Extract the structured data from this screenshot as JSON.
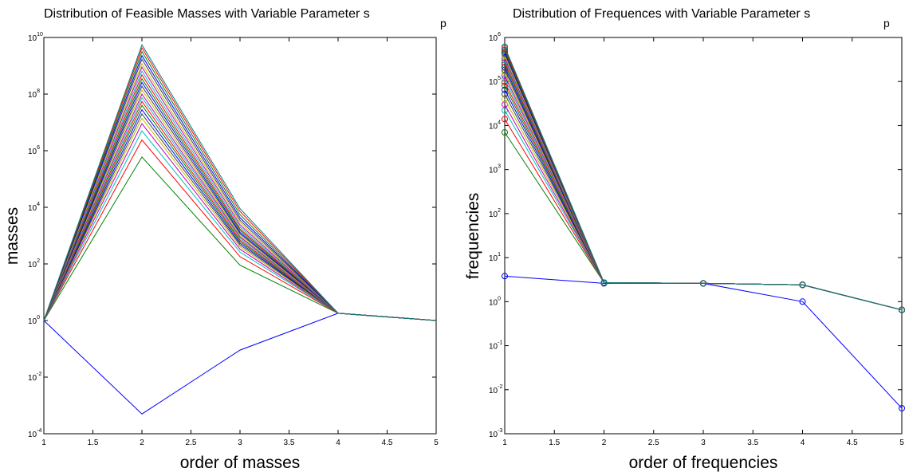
{
  "figure": {
    "title_left": "Distribution of Feasible Masses with Variable Parameter s",
    "title_right": "Distribution of Frequences with Variable Parameter s",
    "title_subscript": "p"
  },
  "chart_data": [
    {
      "type": "line",
      "title": "Distribution of Feasible Masses with Variable Parameter s",
      "title_subscript": "p",
      "xlabel": "order of masses",
      "ylabel": "masses",
      "xlim": [
        1,
        5
      ],
      "ylim": [
        0.0001,
        10000000000
      ],
      "yscale": "log",
      "xticks": [
        "1",
        "1.5",
        "2",
        "2.5",
        "3",
        "3.5",
        "4",
        "4.5",
        "5"
      ],
      "yticks": [
        {
          "base": "10",
          "exp": "-4"
        },
        {
          "base": "10",
          "exp": "-2"
        },
        {
          "base": "10",
          "exp": "0"
        },
        {
          "base": "10",
          "exp": "2"
        },
        {
          "base": "10",
          "exp": "4"
        },
        {
          "base": "10",
          "exp": "6"
        },
        {
          "base": "10",
          "exp": "8"
        },
        {
          "base": "10",
          "exp": "10"
        }
      ],
      "grid": false,
      "markers": false,
      "x": [
        1,
        2,
        3,
        4,
        5
      ],
      "series": [
        {
          "color": "#0000ff",
          "values": [
            1,
            0.0005,
            0.09,
            1.8,
            1
          ]
        },
        {
          "color": "#008000",
          "values": [
            1,
            600000,
            90,
            1.8,
            1
          ]
        },
        {
          "color": "#ff0000",
          "values": [
            1,
            2400000,
            180,
            1.8,
            1
          ]
        },
        {
          "color": "#00bfbf",
          "values": [
            1,
            5000000,
            260,
            1.8,
            1
          ]
        },
        {
          "color": "#bf00bf",
          "values": [
            1,
            9000000,
            330,
            1.8,
            1
          ]
        },
        {
          "color": "#bfbf00",
          "values": [
            1,
            14000000,
            400,
            1.8,
            1
          ]
        },
        {
          "color": "#404040",
          "values": [
            1,
            20000000,
            470,
            1.8,
            1
          ]
        },
        {
          "color": "#0000ff",
          "values": [
            1,
            28000000,
            540,
            1.8,
            1
          ]
        },
        {
          "color": "#008000",
          "values": [
            1,
            40000000,
            620,
            1.8,
            1
          ]
        },
        {
          "color": "#ff0000",
          "values": [
            1,
            55000000,
            700,
            1.8,
            1
          ]
        },
        {
          "color": "#00bfbf",
          "values": [
            1,
            75000000,
            800,
            1.8,
            1
          ]
        },
        {
          "color": "#bf00bf",
          "values": [
            1,
            100000000,
            900,
            1.8,
            1
          ]
        },
        {
          "color": "#bfbf00",
          "values": [
            1,
            140000000,
            1000,
            1.8,
            1
          ]
        },
        {
          "color": "#404040",
          "values": [
            1,
            190000000,
            1150,
            1.8,
            1
          ]
        },
        {
          "color": "#0000ff",
          "values": [
            1,
            260000000,
            1300,
            1.8,
            1
          ]
        },
        {
          "color": "#008000",
          "values": [
            1,
            350000000,
            1500,
            1.8,
            1
          ]
        },
        {
          "color": "#ff0000",
          "values": [
            1,
            480000000,
            1700,
            1.8,
            1
          ]
        },
        {
          "color": "#00bfbf",
          "values": [
            1,
            650000000,
            2000,
            1.8,
            1
          ]
        },
        {
          "color": "#bf00bf",
          "values": [
            1,
            900000000,
            2400,
            1.8,
            1
          ]
        },
        {
          "color": "#bfbf00",
          "values": [
            1,
            1200000000,
            2900,
            1.8,
            1
          ]
        },
        {
          "color": "#404040",
          "values": [
            1,
            1700000000,
            3500,
            1.8,
            1
          ]
        },
        {
          "color": "#0000ff",
          "values": [
            1,
            2300000000,
            4300,
            1.8,
            1
          ]
        },
        {
          "color": "#008000",
          "values": [
            1,
            3200000000,
            5500,
            1.8,
            1
          ]
        },
        {
          "color": "#ff0000",
          "values": [
            1,
            4300000000,
            7200,
            1.8,
            1
          ]
        },
        {
          "color": "#008080",
          "values": [
            1,
            5500000000,
            9000,
            1.8,
            1
          ]
        }
      ]
    },
    {
      "type": "line",
      "title": "Distribution of Frequences with Variable Parameter s",
      "title_subscript": "p",
      "xlabel": "order of frequencies",
      "ylabel": "frequencies",
      "xlim": [
        1,
        5
      ],
      "ylim": [
        0.001,
        1000000
      ],
      "yscale": "log",
      "xticks": [
        "1",
        "1.5",
        "2",
        "2.5",
        "3",
        "3.5",
        "4",
        "4.5",
        "5"
      ],
      "yticks": [
        {
          "base": "10",
          "exp": "-3"
        },
        {
          "base": "10",
          "exp": "-2"
        },
        {
          "base": "10",
          "exp": "-1"
        },
        {
          "base": "10",
          "exp": "0"
        },
        {
          "base": "10",
          "exp": "1"
        },
        {
          "base": "10",
          "exp": "2"
        },
        {
          "base": "10",
          "exp": "3"
        },
        {
          "base": "10",
          "exp": "4"
        },
        {
          "base": "10",
          "exp": "5"
        },
        {
          "base": "10",
          "exp": "6"
        }
      ],
      "grid": false,
      "markers": true,
      "marker": "circle",
      "x": [
        1,
        2,
        3,
        4,
        5
      ],
      "series": [
        {
          "color": "#0000ff",
          "values": [
            3.8,
            2.6,
            2.6,
            1.0,
            0.0038
          ]
        },
        {
          "color": "#008000",
          "values": [
            7000,
            2.7,
            2.6,
            2.4,
            0.65
          ]
        },
        {
          "color": "#ff0000",
          "values": [
            14000,
            2.7,
            2.6,
            2.4,
            0.65
          ]
        },
        {
          "color": "#00bfbf",
          "values": [
            22000,
            2.7,
            2.6,
            2.4,
            0.65
          ]
        },
        {
          "color": "#bf00bf",
          "values": [
            30000,
            2.7,
            2.6,
            2.4,
            0.65
          ]
        },
        {
          "color": "#bfbf00",
          "values": [
            40000,
            2.7,
            2.6,
            2.4,
            0.65
          ]
        },
        {
          "color": "#404040",
          "values": [
            52000,
            2.7,
            2.6,
            2.4,
            0.65
          ]
        },
        {
          "color": "#0000ff",
          "values": [
            65000,
            2.7,
            2.6,
            2.4,
            0.65
          ]
        },
        {
          "color": "#008000",
          "values": [
            80000,
            2.7,
            2.6,
            2.4,
            0.65
          ]
        },
        {
          "color": "#ff0000",
          "values": [
            96000,
            2.7,
            2.6,
            2.4,
            0.65
          ]
        },
        {
          "color": "#00bfbf",
          "values": [
            115000,
            2.7,
            2.6,
            2.4,
            0.65
          ]
        },
        {
          "color": "#bf00bf",
          "values": [
            135000,
            2.7,
            2.6,
            2.4,
            0.65
          ]
        },
        {
          "color": "#bfbf00",
          "values": [
            158000,
            2.7,
            2.6,
            2.4,
            0.65
          ]
        },
        {
          "color": "#404040",
          "values": [
            183000,
            2.7,
            2.6,
            2.4,
            0.65
          ]
        },
        {
          "color": "#0000ff",
          "values": [
            210000,
            2.7,
            2.6,
            2.4,
            0.65
          ]
        },
        {
          "color": "#008000",
          "values": [
            240000,
            2.7,
            2.6,
            2.4,
            0.65
          ]
        },
        {
          "color": "#ff0000",
          "values": [
            272000,
            2.7,
            2.6,
            2.4,
            0.65
          ]
        },
        {
          "color": "#00bfbf",
          "values": [
            306000,
            2.7,
            2.6,
            2.4,
            0.65
          ]
        },
        {
          "color": "#bf00bf",
          "values": [
            343000,
            2.7,
            2.6,
            2.4,
            0.65
          ]
        },
        {
          "color": "#bfbf00",
          "values": [
            383000,
            2.7,
            2.6,
            2.4,
            0.65
          ]
        },
        {
          "color": "#404040",
          "values": [
            425000,
            2.7,
            2.6,
            2.4,
            0.65
          ]
        },
        {
          "color": "#0000ff",
          "values": [
            470000,
            2.7,
            2.6,
            2.4,
            0.65
          ]
        },
        {
          "color": "#008000",
          "values": [
            518000,
            2.7,
            2.6,
            2.4,
            0.65
          ]
        },
        {
          "color": "#ff0000",
          "values": [
            568000,
            2.7,
            2.6,
            2.4,
            0.65
          ]
        },
        {
          "color": "#008080",
          "values": [
            620000,
            2.7,
            2.6,
            2.4,
            0.65
          ]
        }
      ]
    }
  ]
}
